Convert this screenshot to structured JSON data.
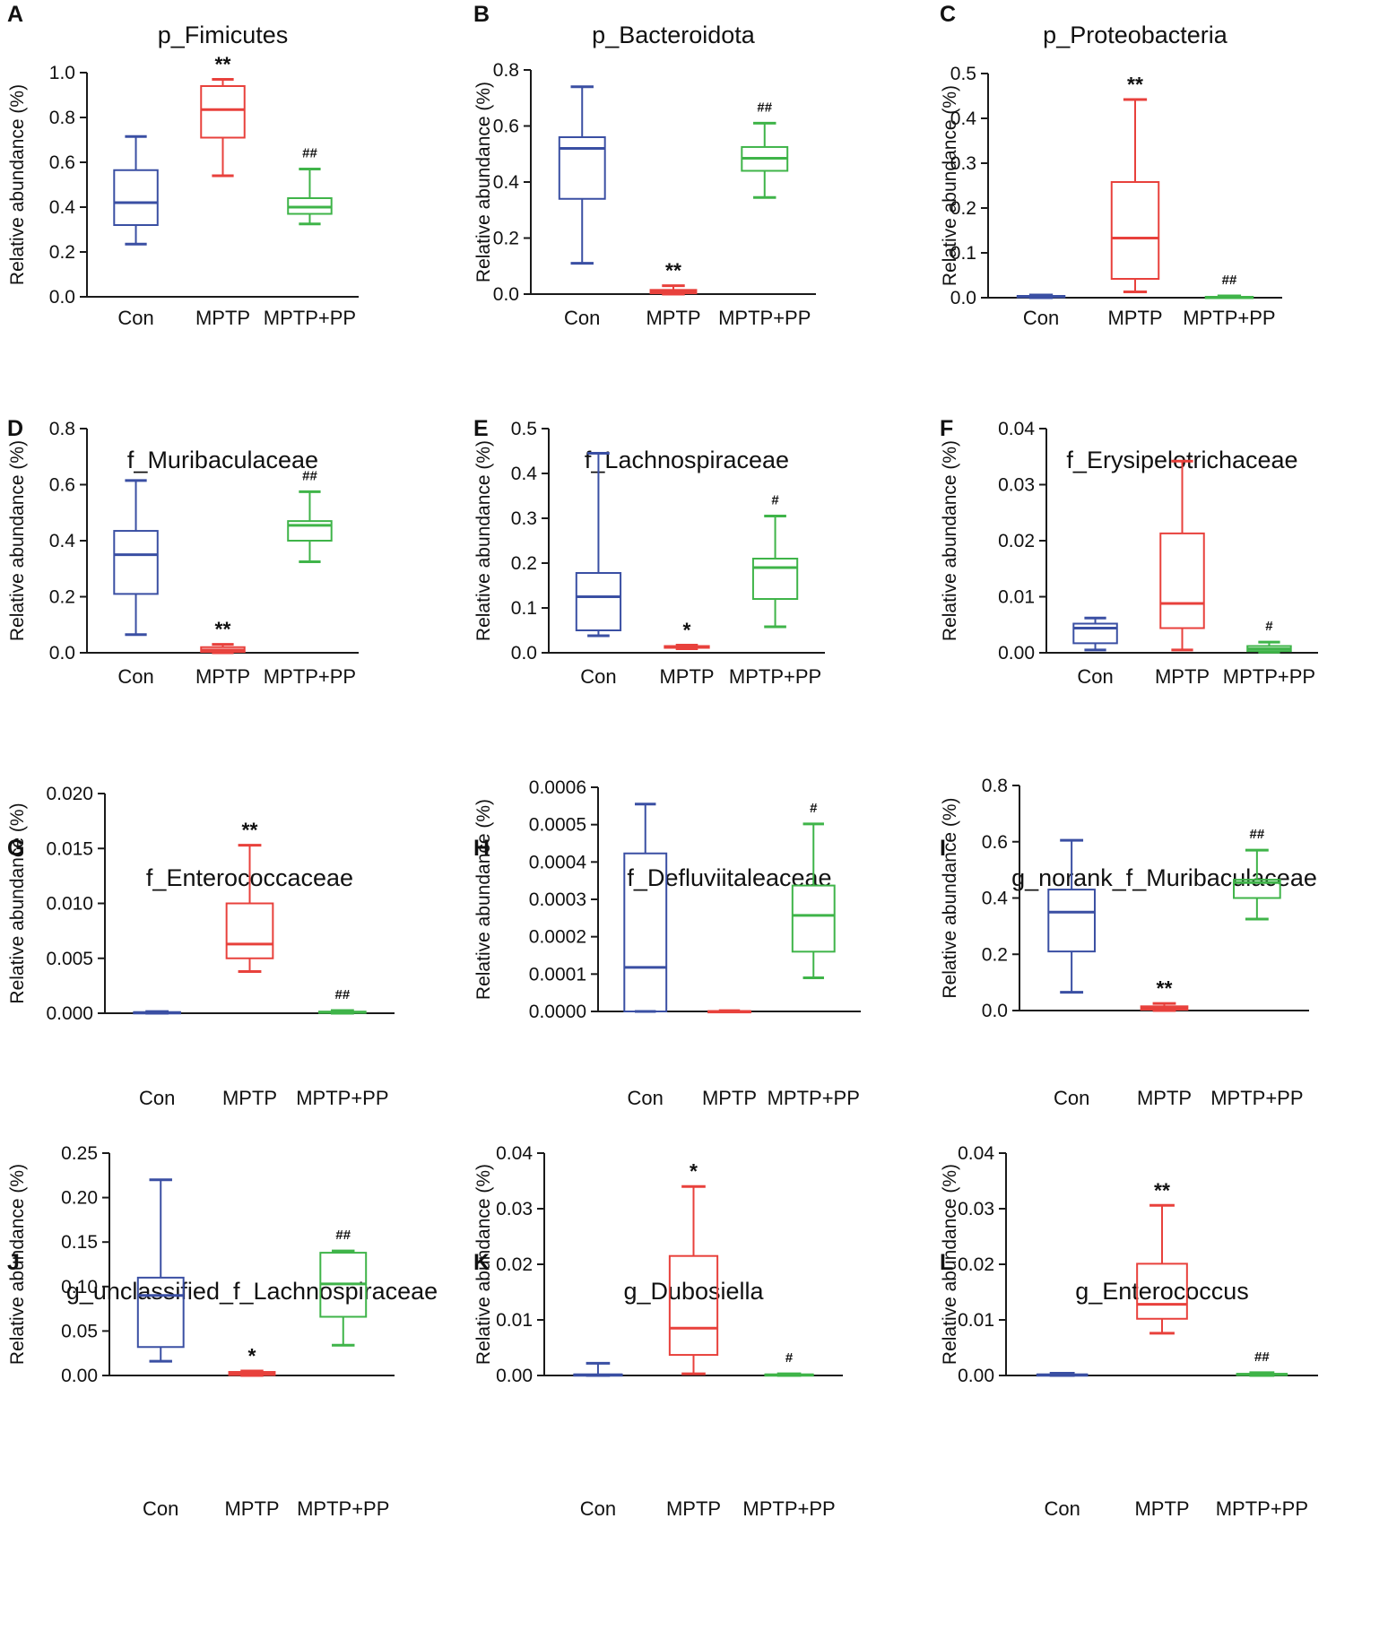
{
  "figure": {
    "name": "Relative abundance box plots"
  },
  "colors": {
    "Con": "#3a4fa3",
    "MPTP": "#e8413c",
    "MPTP+PP": "#3fb449",
    "axis": "#1a1a1a"
  },
  "ylabel": "Relative abundance (%)",
  "categories": [
    "Con",
    "MPTP",
    "MPTP+PP"
  ],
  "chart_data": [
    {
      "type": "box",
      "letter": "A",
      "title": "p_Fimicutes",
      "ylabel": "Relative abundance (%)",
      "ylim": [
        0,
        1.0
      ],
      "yticks": [
        "0.0",
        "0.2",
        "0.4",
        "0.6",
        "0.8",
        "1.0"
      ],
      "series": [
        {
          "name": "Con",
          "min": 0.235,
          "q1": 0.32,
          "median": 0.42,
          "q3": 0.565,
          "max": 0.715,
          "mark": ""
        },
        {
          "name": "MPTP",
          "min": 0.54,
          "q1": 0.71,
          "median": 0.835,
          "q3": 0.94,
          "max": 0.97,
          "mark": "**"
        },
        {
          "name": "MPTP+PP",
          "min": 0.325,
          "q1": 0.37,
          "median": 0.4,
          "q3": 0.44,
          "max": 0.57,
          "mark": "##"
        }
      ]
    },
    {
      "type": "box",
      "letter": "B",
      "title": "p_Bacteroidota",
      "ylabel": "Relative abundance (%)",
      "ylim": [
        0,
        0.8
      ],
      "yticks": [
        "0.0",
        "0.2",
        "0.4",
        "0.6",
        "0.8"
      ],
      "series": [
        {
          "name": "Con",
          "min": 0.11,
          "q1": 0.34,
          "median": 0.52,
          "q3": 0.56,
          "max": 0.74,
          "mark": ""
        },
        {
          "name": "MPTP",
          "min": 0.0,
          "q1": 0.003,
          "median": 0.008,
          "q3": 0.015,
          "max": 0.03,
          "mark": "**"
        },
        {
          "name": "MPTP+PP",
          "min": 0.345,
          "q1": 0.44,
          "median": 0.485,
          "q3": 0.525,
          "max": 0.61,
          "mark": "##"
        }
      ]
    },
    {
      "type": "box",
      "letter": "C",
      "title": "p_Proteobacteria",
      "ylabel": "Relative abundance (%)",
      "ylim": [
        0,
        0.5
      ],
      "yticks": [
        "0.0",
        "0.1",
        "0.2",
        "0.3",
        "0.4",
        "0.5"
      ],
      "series": [
        {
          "name": "Con",
          "min": 0.0,
          "q1": 0.001,
          "median": 0.002,
          "q3": 0.004,
          "max": 0.006,
          "mark": ""
        },
        {
          "name": "MPTP",
          "min": 0.013,
          "q1": 0.042,
          "median": 0.133,
          "q3": 0.258,
          "max": 0.442,
          "mark": "**"
        },
        {
          "name": "MPTP+PP",
          "min": 0.0,
          "q1": 0.001,
          "median": 0.001,
          "q3": 0.002,
          "max": 0.004,
          "mark": "##"
        }
      ]
    },
    {
      "type": "box",
      "letter": "D",
      "title": "f_Muribaculaceae",
      "ylabel": "Relative abundance (%)",
      "ylim": [
        0,
        0.8
      ],
      "yticks": [
        "0.0",
        "0.2",
        "0.4",
        "0.6",
        "0.8"
      ],
      "series": [
        {
          "name": "Con",
          "min": 0.065,
          "q1": 0.21,
          "median": 0.35,
          "q3": 0.435,
          "max": 0.615,
          "mark": ""
        },
        {
          "name": "MPTP",
          "min": 0.0,
          "q1": 0.003,
          "median": 0.01,
          "q3": 0.02,
          "max": 0.03,
          "mark": "**"
        },
        {
          "name": "MPTP+PP",
          "min": 0.325,
          "q1": 0.4,
          "median": 0.455,
          "q3": 0.47,
          "max": 0.575,
          "mark": "##"
        }
      ]
    },
    {
      "type": "box",
      "letter": "E",
      "title": "f_Lachnospiraceae",
      "ylabel": "Relative abundance (%)",
      "ylim": [
        0,
        0.5
      ],
      "yticks": [
        "0.0",
        "0.1",
        "0.2",
        "0.3",
        "0.4",
        "0.5"
      ],
      "series": [
        {
          "name": "Con",
          "min": 0.038,
          "q1": 0.05,
          "median": 0.125,
          "q3": 0.178,
          "max": 0.445,
          "mark": ""
        },
        {
          "name": "MPTP",
          "min": 0.009,
          "q1": 0.011,
          "median": 0.013,
          "q3": 0.015,
          "max": 0.017,
          "mark": "*"
        },
        {
          "name": "MPTP+PP",
          "min": 0.058,
          "q1": 0.12,
          "median": 0.19,
          "q3": 0.21,
          "max": 0.305,
          "mark": "#"
        }
      ]
    },
    {
      "type": "box",
      "letter": "F",
      "title": "f_Erysipelotrichaceae",
      "ylabel": "Relative abundance (%)",
      "ylim": [
        0,
        0.04
      ],
      "yticks": [
        "0.00",
        "0.01",
        "0.02",
        "0.03",
        "0.04"
      ],
      "series": [
        {
          "name": "Con",
          "min": 0.0005,
          "q1": 0.0017,
          "median": 0.0044,
          "q3": 0.0052,
          "max": 0.0062,
          "mark": ""
        },
        {
          "name": "MPTP",
          "min": 0.0005,
          "q1": 0.0044,
          "median": 0.0088,
          "q3": 0.0213,
          "max": 0.0342,
          "mark": ""
        },
        {
          "name": "MPTP+PP",
          "min": 0.0001,
          "q1": 0.0003,
          "median": 0.0007,
          "q3": 0.0012,
          "max": 0.0019,
          "mark": "#"
        }
      ]
    },
    {
      "type": "box",
      "letter": "G",
      "title": "f_Enterococcaceae",
      "ylabel": "Relative abundance (%)",
      "ylim": [
        0,
        0.02
      ],
      "yticks": [
        "0.000",
        "0.005",
        "0.010",
        "0.015",
        "0.020"
      ],
      "series": [
        {
          "name": "Con",
          "min": 0.0,
          "q1": 2e-05,
          "median": 5e-05,
          "q3": 0.0001,
          "max": 0.00015,
          "mark": ""
        },
        {
          "name": "MPTP",
          "min": 0.0038,
          "q1": 0.005,
          "median": 0.0063,
          "q3": 0.01,
          "max": 0.0153,
          "mark": "**"
        },
        {
          "name": "MPTP+PP",
          "min": 0.0,
          "q1": 3e-05,
          "median": 8e-05,
          "q3": 0.00015,
          "max": 0.00025,
          "mark": "##"
        }
      ]
    },
    {
      "type": "box",
      "letter": "H",
      "title": "f_Defluviitaleaceae",
      "ylabel": "Relative abundance (%)",
      "ylim": [
        0,
        0.0006
      ],
      "yticks": [
        "0.0000",
        "0.0001",
        "0.0002",
        "0.0003",
        "0.0004",
        "0.0005",
        "0.0006"
      ],
      "series": [
        {
          "name": "Con",
          "min": 0.0,
          "q1": 0.0,
          "median": 0.000118,
          "q3": 0.000423,
          "max": 0.000555,
          "mark": ""
        },
        {
          "name": "MPTP",
          "min": 0.0,
          "q1": 0.0,
          "median": 0.0,
          "q3": 1e-06,
          "max": 2e-06,
          "mark": ""
        },
        {
          "name": "MPTP+PP",
          "min": 9e-05,
          "q1": 0.00016,
          "median": 0.000257,
          "q3": 0.000337,
          "max": 0.000502,
          "mark": "#"
        }
      ]
    },
    {
      "type": "box",
      "letter": "I",
      "title": "g_norank_f_Muribaculaceae",
      "ylabel": "Relative abundance (%)",
      "ylim": [
        0,
        0.8
      ],
      "yticks": [
        "0.0",
        "0.2",
        "0.4",
        "0.6",
        "0.8"
      ],
      "series": [
        {
          "name": "Con",
          "min": 0.065,
          "q1": 0.21,
          "median": 0.35,
          "q3": 0.43,
          "max": 0.605,
          "mark": ""
        },
        {
          "name": "MPTP",
          "min": 0.0,
          "q1": 0.003,
          "median": 0.008,
          "q3": 0.015,
          "max": 0.025,
          "mark": "**"
        },
        {
          "name": "MPTP+PP",
          "min": 0.325,
          "q1": 0.4,
          "median": 0.455,
          "q3": 0.465,
          "max": 0.57,
          "mark": "##"
        }
      ]
    },
    {
      "type": "box",
      "letter": "J",
      "title": "g_unclassified_f_Lachnospiraceae",
      "ylabel": "Relative abundance (%)",
      "ylim": [
        0,
        0.25
      ],
      "yticks": [
        "0.00",
        "0.05",
        "0.10",
        "0.15",
        "0.20",
        "0.25"
      ],
      "series": [
        {
          "name": "Con",
          "min": 0.016,
          "q1": 0.032,
          "median": 0.09,
          "q3": 0.11,
          "max": 0.22,
          "mark": ""
        },
        {
          "name": "MPTP",
          "min": 0.0,
          "q1": 0.0005,
          "median": 0.002,
          "q3": 0.004,
          "max": 0.005,
          "mark": "*"
        },
        {
          "name": "MPTP+PP",
          "min": 0.034,
          "q1": 0.066,
          "median": 0.103,
          "q3": 0.138,
          "max": 0.14,
          "mark": "##"
        }
      ]
    },
    {
      "type": "box",
      "letter": "K",
      "title": "g_Dubosiella",
      "ylabel": "Relative abundance (%)",
      "ylim": [
        0,
        0.04
      ],
      "yticks": [
        "0.00",
        "0.01",
        "0.02",
        "0.03",
        "0.04"
      ],
      "series": [
        {
          "name": "Con",
          "min": 0.0,
          "q1": 0.0,
          "median": 0.0001,
          "q3": 0.0002,
          "max": 0.0022,
          "mark": ""
        },
        {
          "name": "MPTP",
          "min": 0.0003,
          "q1": 0.0037,
          "median": 0.0085,
          "q3": 0.0215,
          "max": 0.034,
          "mark": "*"
        },
        {
          "name": "MPTP+PP",
          "min": 0.0,
          "q1": 0.0001,
          "median": 0.0001,
          "q3": 0.0002,
          "max": 0.0003,
          "mark": "#"
        }
      ]
    },
    {
      "type": "box",
      "letter": "L",
      "title": "g_Enterococcus",
      "ylabel": "Relative abundance (%)",
      "ylim": [
        0,
        0.04
      ],
      "yticks": [
        "0.00",
        "0.01",
        "0.02",
        "0.03",
        "0.04"
      ],
      "series": [
        {
          "name": "Con",
          "min": 0.0,
          "q1": 0.0,
          "median": 0.0001,
          "q3": 0.0002,
          "max": 0.0004,
          "mark": ""
        },
        {
          "name": "MPTP",
          "min": 0.0076,
          "q1": 0.0102,
          "median": 0.0128,
          "q3": 0.0201,
          "max": 0.0306,
          "mark": "**"
        },
        {
          "name": "MPTP+PP",
          "min": 0.0,
          "q1": 0.0001,
          "median": 0.0002,
          "q3": 0.0003,
          "max": 0.0005,
          "mark": "##"
        }
      ]
    }
  ]
}
